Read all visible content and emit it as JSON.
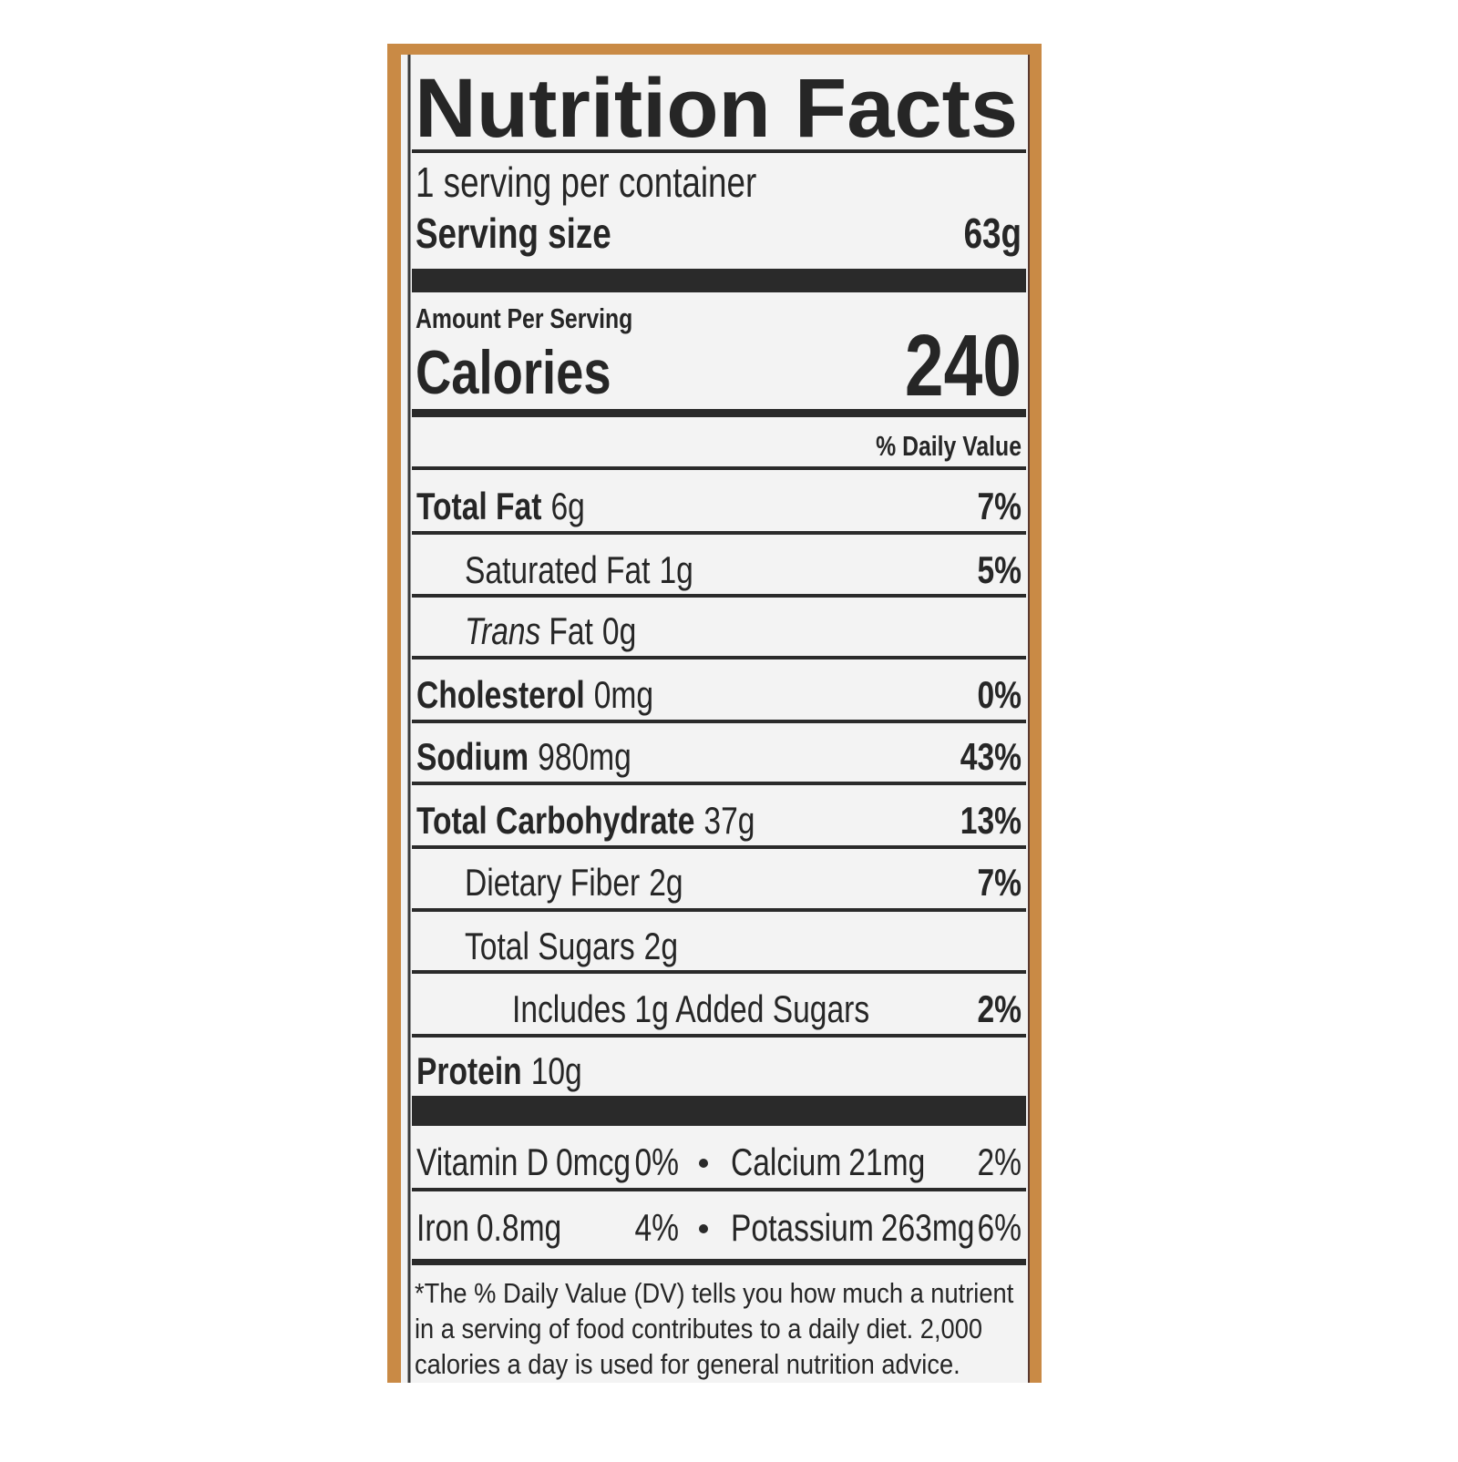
{
  "title": "Nutrition Facts",
  "servings": "1 serving per container",
  "serving_size": {
    "label": "Serving size",
    "value": "63g"
  },
  "amount_per_serving": "Amount Per Serving",
  "calories": {
    "label": "Calories",
    "value": "240"
  },
  "daily_value_header": "% Daily Value",
  "nutrients": [
    {
      "name": "Total Fat",
      "amount": "6g",
      "dv": "7%"
    },
    {
      "name": "Saturated Fat",
      "amount": "1g",
      "dv": "5%"
    },
    {
      "name_prefix": "Trans",
      "name": "Fat",
      "amount": "0g"
    },
    {
      "name": "Cholesterol",
      "amount": "0mg",
      "dv": "0%"
    },
    {
      "name": "Sodium",
      "amount": "980mg",
      "dv": "43%"
    },
    {
      "name": "Total Carbohydrate",
      "amount": "37g",
      "dv": "13%"
    },
    {
      "name": "Dietary Fiber",
      "amount": "2g",
      "dv": "7%"
    },
    {
      "name": "Total Sugars",
      "amount": "2g"
    },
    {
      "name": "Includes 1g Added Sugars",
      "dv": "2%"
    },
    {
      "name": "Protein",
      "amount": "10g"
    }
  ],
  "vitamins": [
    {
      "name": "Vitamin D",
      "amount": "0mcg",
      "dv": "0%"
    },
    {
      "name": "Calcium",
      "amount": "21mg",
      "dv": "2%"
    },
    {
      "name": "Iron",
      "amount": "0.8mg",
      "dv": "4%"
    },
    {
      "name": "Potassium",
      "amount": "263mg",
      "dv": "6%"
    }
  ],
  "footnote": [
    "*The % Daily Value (DV) tells you how much a nutrient",
    "in a serving of food contributes to a daily diet. 2,000",
    "calories a day is used for general nutrition advice."
  ]
}
